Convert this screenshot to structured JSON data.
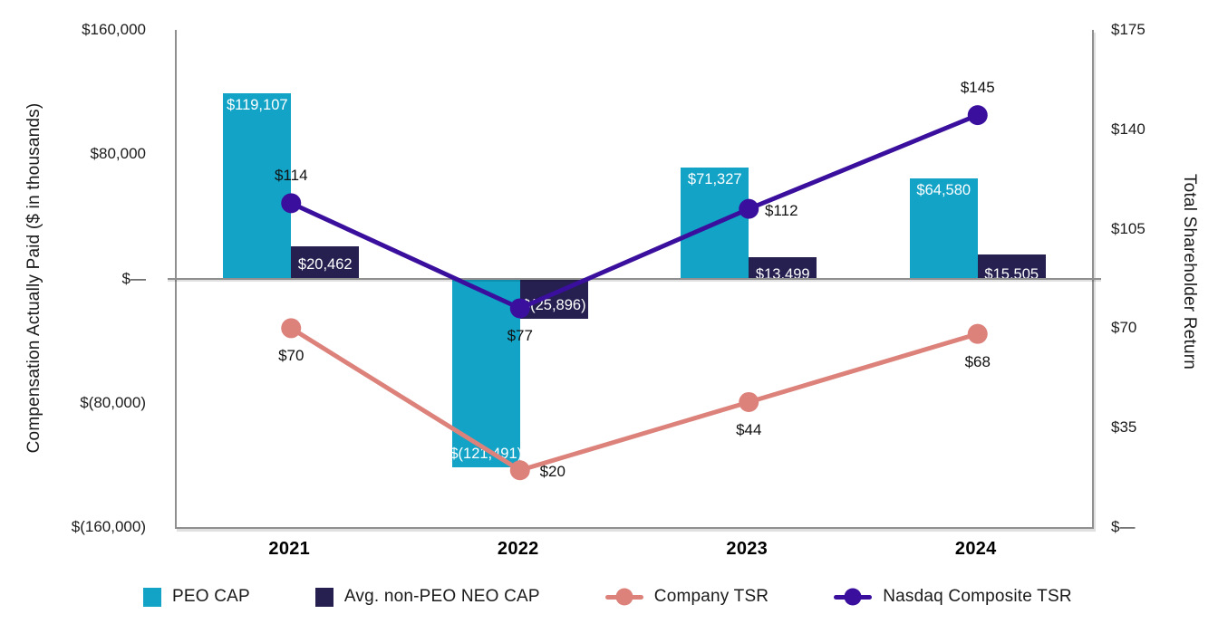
{
  "chart_data": {
    "type": "combo-bar-line",
    "categories": [
      "2021",
      "2022",
      "2023",
      "2024"
    ],
    "left_axis": {
      "label": "Compensation Actually Paid ($ in thousands)",
      "min": -160000,
      "max": 160000,
      "ticks": [
        {
          "value": 160000,
          "label": "$160,000"
        },
        {
          "value": 80000,
          "label": "$80,000"
        },
        {
          "value": 0,
          "label": "$—"
        },
        {
          "value": -80000,
          "label": "$(80,000)"
        },
        {
          "value": -160000,
          "label": "$(160,000)"
        }
      ]
    },
    "right_axis": {
      "label": "Total Shareholder Return",
      "min": 0,
      "max": 175,
      "ticks": [
        {
          "value": 175,
          "label": "$175"
        },
        {
          "value": 140,
          "label": "$140"
        },
        {
          "value": 105,
          "label": "$105"
        },
        {
          "value": 70,
          "label": "$70"
        },
        {
          "value": 35,
          "label": "$35"
        },
        {
          "value": 0,
          "label": "$—"
        }
      ]
    },
    "bar_series": [
      {
        "name": "PEO CAP",
        "color": "#12a3c7",
        "values": [
          119107,
          -121491,
          71327,
          64580
        ],
        "labels": [
          "$119,107",
          "$(121,491)",
          "$71,327",
          "$64,580"
        ],
        "label_positions": [
          "inside-top",
          "inside-bottom",
          "inside-top",
          "inside-top"
        ]
      },
      {
        "name": "Avg. non-PEO NEO CAP",
        "color": "#252050",
        "values": [
          20462,
          -25896,
          13499,
          15505
        ],
        "labels": [
          "$20,462",
          "$(25,896)",
          "$13,499",
          "$15,505"
        ],
        "label_positions": [
          "inside-bottom",
          "inside-bottom",
          "inside-bottom-clip",
          "inside-bottom-clip"
        ]
      }
    ],
    "line_series": [
      {
        "name": "Company TSR",
        "color": "#dc827b",
        "values": [
          70,
          20,
          44,
          68
        ],
        "labels": [
          "$70",
          "$20",
          "$44",
          "$68"
        ],
        "label_positions": [
          "below",
          "right",
          "below",
          "below"
        ]
      },
      {
        "name": "Nasdaq Composite TSR",
        "color": "#3a0f9d",
        "values": [
          114,
          77,
          112,
          145
        ],
        "labels": [
          "$114",
          "$77",
          "$112",
          "$145"
        ],
        "label_positions": [
          "above",
          "below",
          "right",
          "above"
        ]
      }
    ],
    "legend": [
      {
        "label": "PEO CAP",
        "marker": "square",
        "color": "#12a3c7"
      },
      {
        "label": "Avg. non-PEO NEO CAP",
        "marker": "square",
        "color": "#252050"
      },
      {
        "label": "Company TSR",
        "marker": "line-dot",
        "color": "#dc827b"
      },
      {
        "label": "Nasdaq Composite TSR",
        "marker": "line-dot",
        "color": "#3a0f9d"
      }
    ]
  }
}
